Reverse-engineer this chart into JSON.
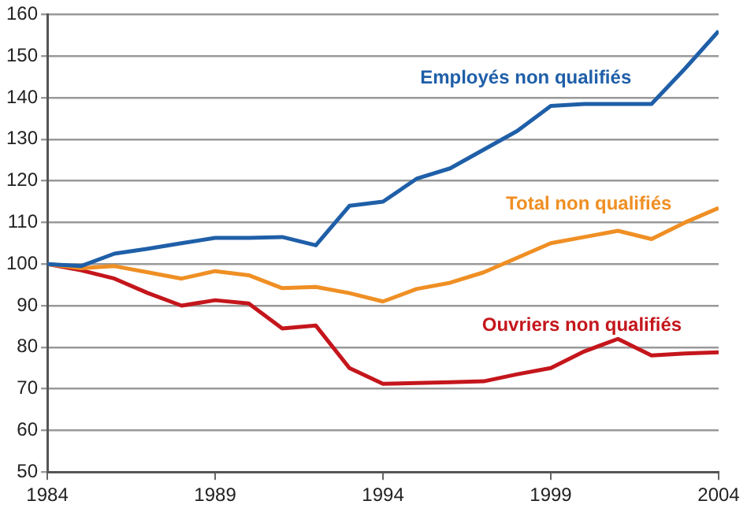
{
  "chart_data": {
    "type": "line",
    "x": [
      1984,
      1985,
      1986,
      1987,
      1988,
      1989,
      1990,
      1991,
      1992,
      1993,
      1994,
      1995,
      1996,
      1997,
      1998,
      1999,
      2000,
      2001,
      2002,
      2003,
      2004
    ],
    "series": [
      {
        "name": "Employés non qualifiés",
        "color": "#1f5fa8",
        "values": [
          100,
          99.5,
          102.5,
          103.7,
          105,
          106.3,
          106.3,
          106.5,
          104.5,
          114,
          115,
          120.5,
          123,
          127.5,
          132,
          138,
          138.5,
          138.5,
          138.5,
          147,
          156
        ]
      },
      {
        "name": "Total non qualifiés",
        "color": "#ef8f24",
        "values": [
          100,
          99,
          99.5,
          98,
          96.5,
          98.3,
          97.3,
          94.2,
          94.5,
          93,
          91,
          94,
          95.5,
          98,
          101.5,
          105,
          106.5,
          108,
          106,
          110,
          113.5
        ]
      },
      {
        "name": "Ouvriers non qualifiés",
        "color": "#c4161c",
        "values": [
          100,
          98.5,
          96.5,
          93,
          90,
          91.3,
          90.5,
          84.5,
          85.2,
          75,
          71.2,
          71.4,
          71.6,
          71.8,
          73.5,
          75,
          79,
          82,
          78,
          78.5,
          78.8
        ]
      }
    ],
    "xlim": [
      1984,
      2004
    ],
    "xticks": [
      1984,
      1989,
      1994,
      1999,
      2004
    ],
    "ylim": [
      50,
      160
    ],
    "yticks": [
      50,
      60,
      70,
      80,
      90,
      100,
      110,
      120,
      130,
      140,
      150,
      160
    ],
    "grid": "y",
    "legend": false,
    "marker": "none",
    "line_style": "solid"
  }
}
